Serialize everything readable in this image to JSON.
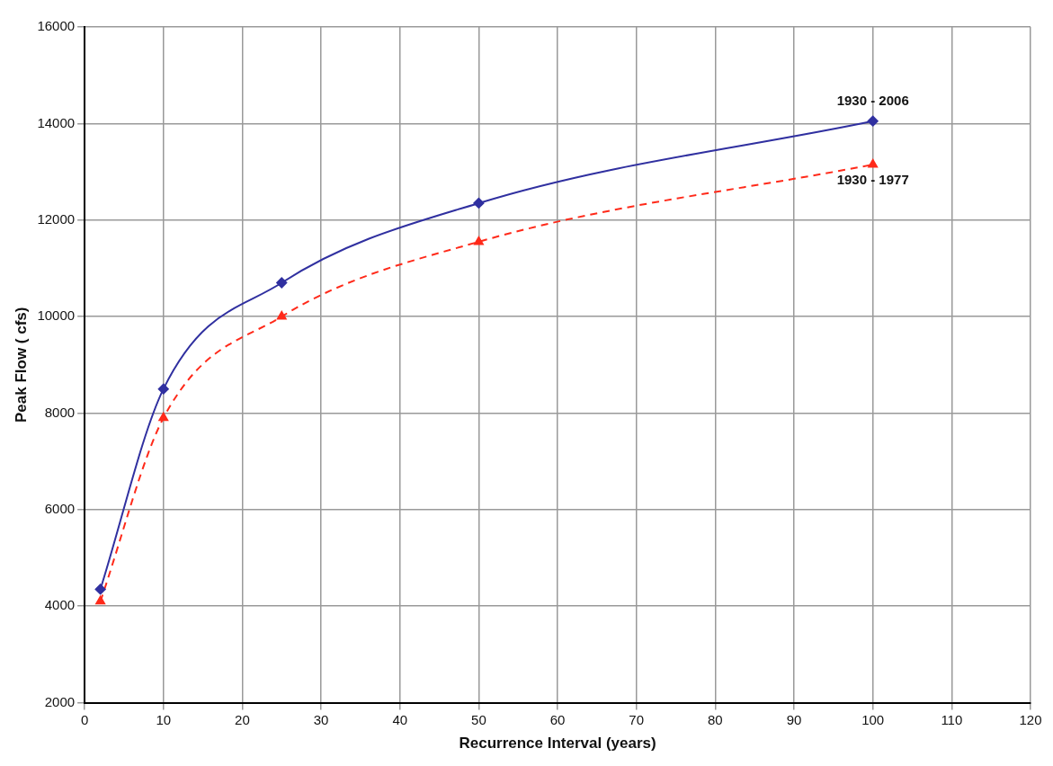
{
  "chart_data": {
    "type": "line",
    "xlabel": "Recurrence Interval (years)",
    "ylabel": "Peak Flow ( cfs)",
    "xlim": [
      0,
      120
    ],
    "xticks": [
      0,
      10,
      20,
      30,
      40,
      50,
      60,
      70,
      80,
      90,
      100,
      110,
      120
    ],
    "ylim": [
      2000,
      16000
    ],
    "yticks": [
      2000,
      4000,
      6000,
      8000,
      10000,
      12000,
      14000,
      16000
    ],
    "grid": true,
    "legend": false,
    "series": [
      {
        "name": "1930 - 2006",
        "color": "#3030a0",
        "x": [
          2,
          10,
          25,
          50,
          100
        ],
        "values": [
          4350,
          8500,
          10700,
          12350,
          14050
        ],
        "marker": "diamond",
        "line_style": "solid"
      },
      {
        "name": "1930 - 1977",
        "color": "#ff2a1a",
        "x": [
          2,
          10,
          25,
          50,
          100
        ],
        "values": [
          4100,
          7900,
          10000,
          11550,
          13150
        ],
        "marker": "triangle",
        "line_style": "dashed"
      }
    ]
  }
}
